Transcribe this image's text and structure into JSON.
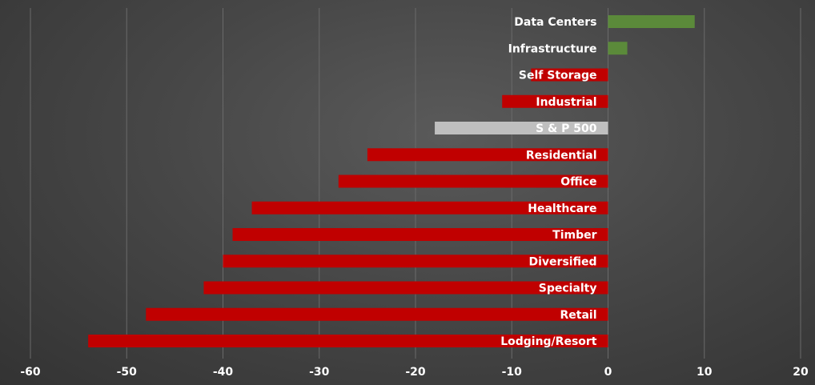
{
  "chart_data": {
    "type": "bar",
    "orientation": "horizontal",
    "title": "",
    "xlabel": "",
    "ylabel": "",
    "xlim": [
      -60,
      20
    ],
    "x_ticks": [
      -60,
      -50,
      -40,
      -30,
      -20,
      -10,
      0,
      10,
      20
    ],
    "grid": "vertical",
    "legend": "none",
    "categories": [
      "Data Centers",
      "Infrastructure",
      "Self Storage",
      "Industrial",
      "S & P 500",
      "Residential",
      "Office",
      "Healthcare",
      "Timber",
      "Diversified",
      "Specialty",
      "Retail",
      "Lodging/Resort"
    ],
    "values": [
      9,
      2,
      -8,
      -11,
      -18,
      -25,
      -28,
      -37,
      -39,
      -40,
      -42,
      -48,
      -54
    ],
    "colors": {
      "positive": "#5b8a3a",
      "negative": "#c00000",
      "benchmark": "#bfbfbf",
      "label": "#ffffff",
      "background": "#474747"
    },
    "benchmark_category": "S & P 500"
  }
}
